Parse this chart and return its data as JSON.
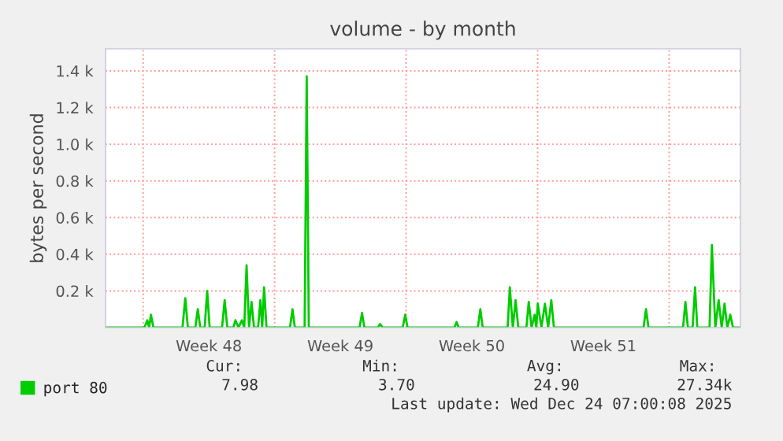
{
  "chart_data": {
    "type": "line",
    "title": "volume - by month",
    "ylabel": "bytes per second",
    "x": [
      "2025-11-22T00:00",
      "2025-11-24T01:40",
      "2025-11-24T05:20",
      "2025-11-24T07:40",
      "2025-11-24T10:00",
      "2025-11-24T13:10",
      "2025-11-26T02:20",
      "2025-11-26T05:50",
      "2025-11-26T09:10",
      "2025-11-26T18:40",
      "2025-11-26T21:50",
      "2025-11-27T01:00",
      "2025-11-27T06:40",
      "2025-11-27T09:50",
      "2025-11-27T13:00",
      "2025-11-28T04:50",
      "2025-11-28T08:10",
      "2025-11-28T11:30",
      "2025-11-28T19:10",
      "2025-11-28T22:00",
      "2025-11-29T01:50",
      "2025-11-29T06:10",
      "2025-11-29T09:10",
      "2025-11-29T12:10",
      "2025-11-29T15:20",
      "2025-11-29T18:30",
      "2025-11-29T21:40",
      "2025-11-30T02:50",
      "2025-11-30T05:50",
      "2025-11-30T08:10",
      "2025-11-30T10:30",
      "2025-11-30T13:40",
      "2025-12-01T19:40",
      "2025-12-01T22:50",
      "2025-12-02T01:50",
      "2025-12-02T14:20",
      "2025-12-02T17:00",
      "2025-12-02T19:40",
      "2025-12-05T12:30",
      "2025-12-05T15:40",
      "2025-12-05T18:40",
      "2025-12-06T12:00",
      "2025-12-06T14:40",
      "2025-12-06T18:00",
      "2025-12-07T19:40",
      "2025-12-07T22:50",
      "2025-12-08T01:50",
      "2025-12-10T13:50",
      "2025-12-10T16:30",
      "2025-12-10T19:10",
      "2025-12-11T19:40",
      "2025-12-11T22:50",
      "2025-12-12T01:50",
      "2025-12-13T09:40",
      "2025-12-13T12:30",
      "2025-12-13T16:20",
      "2025-12-13T19:50",
      "2025-12-13T23:20",
      "2025-12-14T09:40",
      "2025-12-14T12:40",
      "2025-12-14T16:20",
      "2025-12-14T20:10",
      "2025-12-14T22:20",
      "2025-12-15T00:10",
      "2025-12-15T04:50",
      "2025-12-15T09:20",
      "2025-12-15T13:30",
      "2025-12-15T17:30",
      "2025-12-15T20:50",
      "2025-12-20T15:20",
      "2025-12-20T18:30",
      "2025-12-20T21:40",
      "2025-12-22T17:50",
      "2025-12-22T20:50",
      "2025-12-23T00:00",
      "2025-12-23T06:00",
      "2025-12-23T09:10",
      "2025-12-23T12:00",
      "2025-12-24T03:40",
      "2025-12-24T06:40",
      "2025-12-24T11:00",
      "2025-12-24T15:20",
      "2025-12-24T19:10",
      "2025-12-24T22:50",
      "2025-12-25T02:20",
      "2025-12-25T06:10",
      "2025-12-25T09:40",
      "2025-12-25T19:10"
    ],
    "series": [
      {
        "name": "port 80",
        "color": "#00cc00",
        "values": [
          0,
          0,
          40,
          0,
          70,
          0,
          0,
          160,
          0,
          0,
          100,
          0,
          0,
          200,
          0,
          0,
          150,
          0,
          0,
          40,
          0,
          40,
          0,
          340,
          0,
          140,
          0,
          0,
          150,
          0,
          220,
          0,
          0,
          100,
          0,
          0,
          1370,
          0,
          0,
          80,
          0,
          0,
          20,
          0,
          0,
          70,
          0,
          0,
          30,
          0,
          0,
          100,
          0,
          0,
          220,
          0,
          150,
          0,
          0,
          140,
          0,
          70,
          0,
          130,
          0,
          130,
          0,
          150,
          0,
          0,
          100,
          0,
          0,
          140,
          0,
          0,
          220,
          0,
          0,
          450,
          0,
          150,
          0,
          130,
          0,
          70,
          0,
          0
        ]
      }
    ],
    "xlim": [
      "2025-11-22T00:00",
      "2025-12-25T19:10"
    ],
    "xticks": [
      {
        "value": "2025-11-27T12:00",
        "label": "Week 48"
      },
      {
        "value": "2025-12-04T12:00",
        "label": "Week 49"
      },
      {
        "value": "2025-12-11T12:00",
        "label": "Week 50"
      },
      {
        "value": "2025-12-18T12:00",
        "label": "Week 51"
      }
    ],
    "ylim": [
      0,
      1520
    ],
    "yticks": [
      {
        "value": 200,
        "label": "0.2 k"
      },
      {
        "value": 400,
        "label": "0.4 k"
      },
      {
        "value": 600,
        "label": "0.6 k"
      },
      {
        "value": 800,
        "label": "0.8 k"
      },
      {
        "value": 1000,
        "label": "1.0 k"
      },
      {
        "value": 1200,
        "label": "1.2 k"
      },
      {
        "value": 1400,
        "label": "1.4 k"
      }
    ],
    "grid": "y",
    "ref_lines": [
      {
        "axis": "x",
        "value": "2025-11-24",
        "color": "#ff9999",
        "line_style": "dotted"
      },
      {
        "axis": "x",
        "value": "2025-12-01",
        "color": "#ff9999",
        "line_style": "dotted"
      },
      {
        "axis": "x",
        "value": "2025-12-08",
        "color": "#ff9999",
        "line_style": "dotted"
      },
      {
        "axis": "x",
        "value": "2025-12-15",
        "color": "#ff9999",
        "line_style": "dotted"
      },
      {
        "axis": "x",
        "value": "2025-12-22",
        "color": "#ff9999",
        "line_style": "dotted"
      }
    ],
    "legend": "bottom left",
    "annotations": [
      "Cur:",
      "Min:",
      "Avg:",
      "Max:",
      "7.98",
      "3.70",
      "24.90",
      "27.34k",
      "Last update: Wed Dec 24 07:00:08 2025"
    ]
  }
}
